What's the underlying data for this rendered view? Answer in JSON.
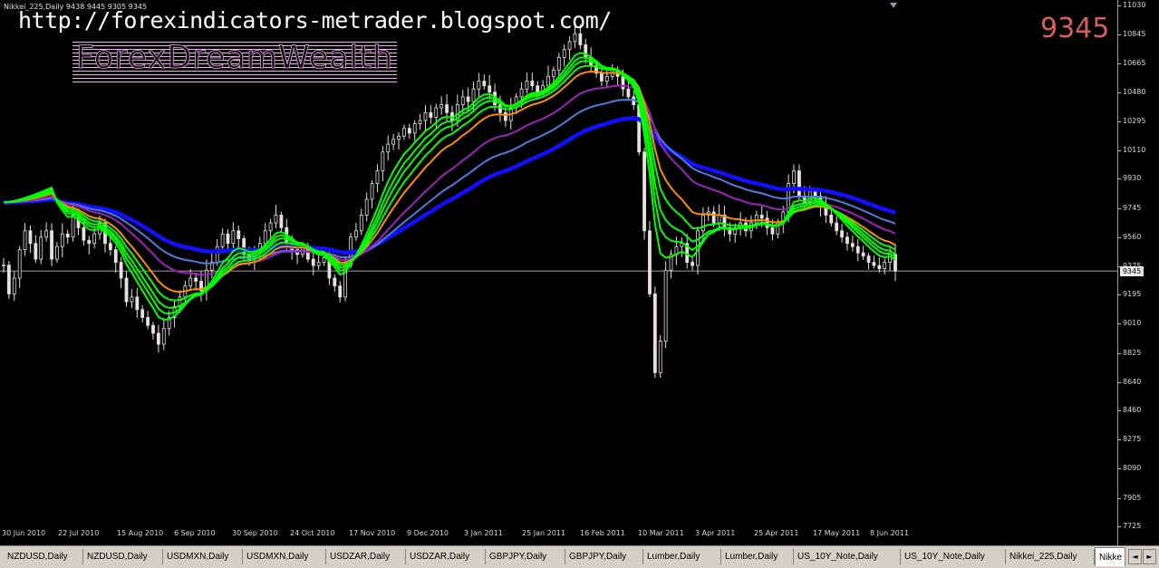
{
  "chart": {
    "symbol_info": "Nikkei_225,Daily  9438 9445 9305 9345",
    "watermark_url": "http://forexindicators-metrader.blogspot.com/",
    "brand": "ForexDreamWealth",
    "current_price": "9345",
    "price_label": "9345"
  },
  "colors": {
    "background": "#000000",
    "candle": "#e8e0e0",
    "ema_fast": "#00ff00",
    "ema_mid": "#ff8c00",
    "ema_slow1": "#a020c0",
    "ema_slow2": "#4a7ee0",
    "ema_slow3": "#1010ff",
    "price_line": "#9e9e9e"
  },
  "chart_data": {
    "type": "candlestick",
    "title": "",
    "y_ticks": [
      "11030",
      "10845",
      "10665",
      "10480",
      "10295",
      "10110",
      "9930",
      "9745",
      "9560",
      "9375",
      "9195",
      "9010",
      "8825",
      "8640",
      "8460",
      "8275",
      "8090",
      "7905",
      "7725"
    ],
    "ylim": [
      7725,
      11030
    ],
    "x_ticks": [
      "30 Jun 2010",
      "22 Jul 2010",
      "15 Aug 2010",
      "6 Sep 2010",
      "30 Sep 2010",
      "24 Oct 2010",
      "17 Nov 2010",
      "9 Dec 2010",
      "3 Jan 2011",
      "25 Jan 2011",
      "16 Feb 2011",
      "10 Mar 2011",
      "3 Apr 2011",
      "25 Apr 2011",
      "17 May 2011",
      "8 Jun 2011"
    ],
    "close_series": [
      9382,
      9200,
      9300,
      9480,
      9600,
      9520,
      9420,
      9560,
      9600,
      9420,
      9500,
      9580,
      9560,
      9700,
      9620,
      9540,
      9520,
      9580,
      9650,
      9520,
      9480,
      9400,
      9300,
      9150,
      9180,
      9100,
      9050,
      9000,
      8950,
      8880,
      8980,
      9050,
      9120,
      9180,
      9250,
      9300,
      9280,
      9220,
      9350,
      9400,
      9500,
      9580,
      9520,
      9600,
      9550,
      9450,
      9420,
      9480,
      9520,
      9600,
      9650,
      9700,
      9620,
      9520,
      9480,
      9450,
      9500,
      9420,
      9380,
      9400,
      9430,
      9300,
      9250,
      9180,
      9380,
      9560,
      9600,
      9700,
      9800,
      9900,
      9980,
      10100,
      10150,
      10180,
      10200,
      10250,
      10220,
      10280,
      10300,
      10350,
      10320,
      10380,
      10400,
      10350,
      10300,
      10400,
      10450,
      10420,
      10500,
      10550,
      10520,
      10480,
      10400,
      10350,
      10300,
      10380,
      10450,
      10500,
      10550,
      10520,
      10480,
      10520,
      10580,
      10620,
      10700,
      10750,
      10800,
      10850,
      10780,
      10700,
      10650,
      10600,
      10550,
      10580,
      10620,
      10580,
      10500,
      10450,
      10400,
      10100,
      9600,
      9200,
      8700,
      8900,
      9350,
      9450,
      9500,
      9520,
      9400,
      9380,
      9600,
      9700,
      9720,
      9650,
      9700,
      9620,
      9580,
      9620,
      9650,
      9600,
      9650,
      9700,
      9680,
      9620,
      9580,
      9650,
      9720,
      9900,
      9980,
      9820,
      9780,
      9850,
      9820,
      9760,
      9700,
      9650,
      9600,
      9560,
      9520,
      9500,
      9460,
      9440,
      9400,
      9380,
      9360,
      9400,
      9450,
      9345
    ],
    "price_line": 9345,
    "indicators": [
      "EMA green x4",
      "EMA orange",
      "EMA purple",
      "EMA light blue",
      "EMA blue (thick)"
    ]
  },
  "tabs": [
    {
      "label": "NZDUSD,Daily"
    },
    {
      "label": "NZDUSD,Daily"
    },
    {
      "label": "USDMXN,Daily"
    },
    {
      "label": "USDMXN,Daily"
    },
    {
      "label": "USDZAR,Daily"
    },
    {
      "label": "USDZAR,Daily"
    },
    {
      "label": "GBPJPY,Daily"
    },
    {
      "label": "GBPJPY,Daily"
    },
    {
      "label": "Lumber,Daily"
    },
    {
      "label": "Lumber,Daily"
    },
    {
      "label": "US_10Y_Note,Daily"
    },
    {
      "label": "US_10Y_Note,Daily"
    },
    {
      "label": "Nikkei_225,Daily"
    },
    {
      "label": "Nikke"
    }
  ],
  "scroll": {
    "left": "◄",
    "right": "►"
  }
}
